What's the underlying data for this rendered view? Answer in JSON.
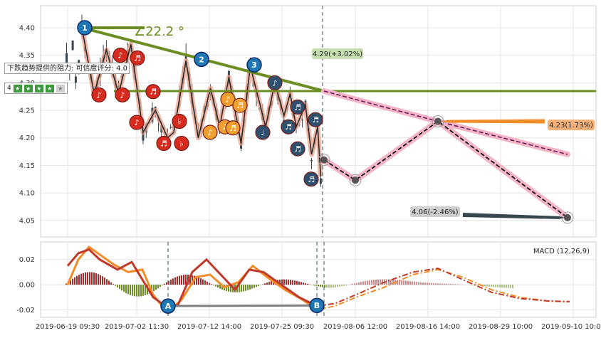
{
  "chart_data": {
    "type": "line",
    "subtype": "candlestick-forecast",
    "price_panel": {
      "ylim": [
        4.02,
        4.44
      ],
      "yticks": [
        "4.40",
        "4.35",
        "4.30",
        "4.25",
        "4.20",
        "4.15",
        "4.10",
        "4.05"
      ],
      "ytick_values": [
        4.4,
        4.35,
        4.3,
        4.25,
        4.2,
        4.15,
        4.1,
        4.05
      ],
      "trend_angle_label": "∠22.2 °",
      "resistance_tooltip": "下跌趋势提供的阻力: 可信度评分: 4.0",
      "rating_prefix": "4",
      "rating_score": 4,
      "rating_max": 5,
      "horizontal_level": 4.285,
      "fitted_zigzag": [
        [
          0,
          4.4
        ],
        [
          4,
          4.28
        ],
        [
          8,
          4.36
        ],
        [
          12,
          4.28
        ],
        [
          16,
          4.37
        ],
        [
          20,
          4.21
        ],
        [
          24,
          4.25
        ],
        [
          28,
          4.2
        ],
        [
          30,
          4.21
        ],
        [
          34,
          4.34
        ],
        [
          38,
          4.2
        ],
        [
          42,
          4.29
        ],
        [
          45,
          4.22
        ],
        [
          48,
          4.31
        ],
        [
          52,
          4.19
        ],
        [
          55,
          4.33
        ],
        [
          60,
          4.22
        ],
        [
          63,
          4.3
        ],
        [
          66,
          4.24
        ],
        [
          68,
          4.28
        ],
        [
          70,
          4.22
        ],
        [
          73,
          4.26
        ],
        [
          75,
          4.17
        ],
        [
          77,
          4.22
        ],
        [
          78,
          4.13
        ]
      ],
      "peak_markers": [
        {
          "label": "1",
          "x": 0,
          "y": 4.4
        },
        {
          "label": "2",
          "x": 34,
          "y": 4.34
        },
        {
          "label": "3",
          "x": 52,
          "y": 4.33
        }
      ],
      "forecast_upper": {
        "label": "4.29(+3.02%)",
        "value": 4.29
      },
      "forecast_mid": {
        "label": "4.23(1.73%)",
        "value": 4.23
      },
      "forecast_low": {
        "label": "4.06(-2.46%)",
        "value": 4.06
      },
      "forecast_path": [
        [
          79,
          4.16
        ],
        [
          86,
          4.123
        ],
        [
          100,
          4.23
        ],
        [
          120,
          4.055
        ]
      ]
    },
    "macd_panel": {
      "label": "MACD (12,26,9)",
      "ylim": [
        -0.026,
        0.034
      ],
      "yticks": [
        "0.02",
        "0.00",
        "-0.02"
      ],
      "ytick_values": [
        0.02,
        0.0,
        -0.02
      ],
      "divergence_markers": [
        {
          "label": "A",
          "x": 26,
          "y": -0.017
        },
        {
          "label": "B",
          "x": 76,
          "y": -0.0165
        }
      ]
    },
    "x_axis": {
      "ticks": [
        "2019-06-19 09:30",
        "2019-07-02 11:30",
        "2019-07-12 14:00",
        "2019-07-25 09:30",
        "2019-08-06 12:00",
        "2019-08-16 14:00",
        "2019-08-29 10:00",
        "2019-09-10 10:00"
      ]
    },
    "colors": {
      "candle": "#37474f",
      "trend": "#6b8e23",
      "forecast_dash": "#6a1b5a",
      "forecast_band": "#f4b6c6",
      "macd_line": "#c0392b",
      "signal_line": "#f28c28",
      "hist_pos": "#a52a2a",
      "hist_neg": "#6b8e23",
      "marker_red": "#d62b1f",
      "marker_orange": "#f0a030",
      "marker_blue": "#1f77b4"
    }
  }
}
